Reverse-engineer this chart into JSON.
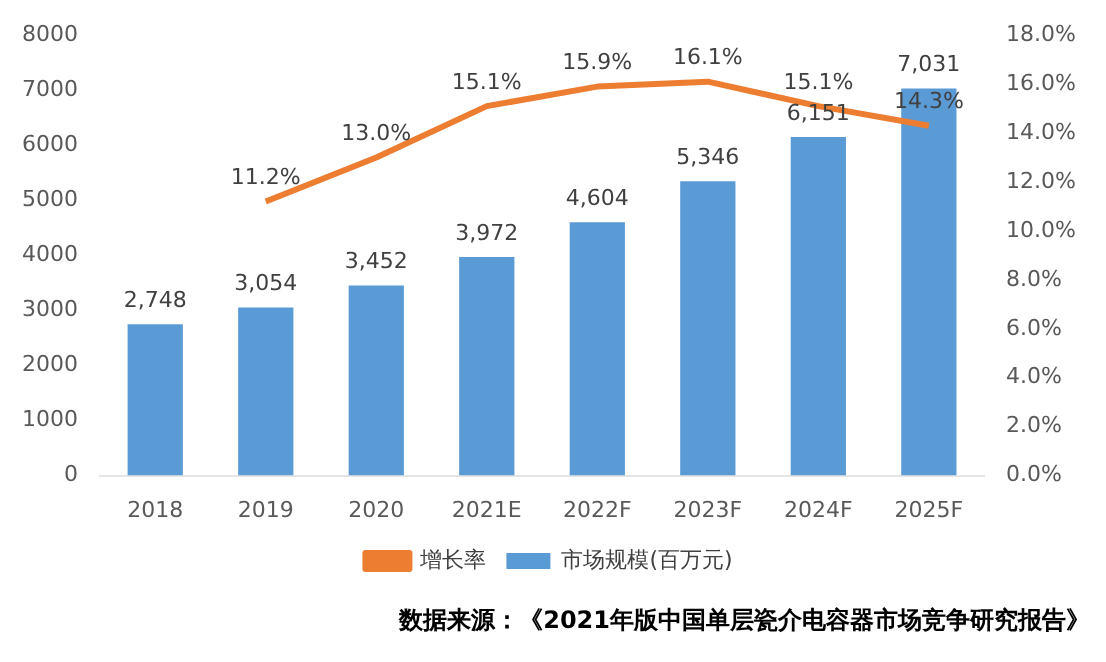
{
  "chart_data": {
    "type": "bar",
    "categories": [
      "2018",
      "2019",
      "2020",
      "2021E",
      "2022F",
      "2023F",
      "2024F",
      "2025F"
    ],
    "series": [
      {
        "name": "市场规模(百万元)",
        "color": "#5b9bd5",
        "values": [
          2748,
          3054,
          3452,
          3972,
          4604,
          5346,
          6151,
          7031
        ],
        "value_labels": [
          "2,748",
          "3,054",
          "3,452",
          "3,972",
          "4,604",
          "5,346",
          "6,151",
          "7,031"
        ]
      },
      {
        "name": "增长率",
        "type": "line",
        "axis": "y2",
        "color": "#ed7d31",
        "values": [
          null,
          11.2,
          13.0,
          15.1,
          15.9,
          16.1,
          15.1,
          14.3
        ],
        "value_labels": [
          null,
          "11.2%",
          "13.0%",
          "15.1%",
          "15.9%",
          "16.1%",
          "15.1%",
          "14.3%"
        ]
      }
    ],
    "ylim": [
      0,
      8000
    ],
    "yticks": [
      0,
      1000,
      2000,
      3000,
      4000,
      5000,
      6000,
      7000,
      8000
    ],
    "y2lim": [
      0,
      18
    ],
    "y2ticks": [
      {
        "value": 0,
        "label": "0.0%"
      },
      {
        "value": 2,
        "label": "2.0%"
      },
      {
        "value": 4,
        "label": "4.0%"
      },
      {
        "value": 6,
        "label": "6.0%"
      },
      {
        "value": 8,
        "label": "8.0%"
      },
      {
        "value": 10,
        "label": "10.0%"
      },
      {
        "value": 12,
        "label": "12.0%"
      },
      {
        "value": 14,
        "label": "14.0%"
      },
      {
        "value": 16,
        "label": "16.0%"
      },
      {
        "value": 18,
        "label": "18.0%"
      }
    ],
    "grid": false,
    "legend": "bottom",
    "marker": "none",
    "line_style": "solid",
    "annotations": [
      "数据来源：《2021年版中国单层瓷介电容器市场竞争研究报告》"
    ]
  }
}
